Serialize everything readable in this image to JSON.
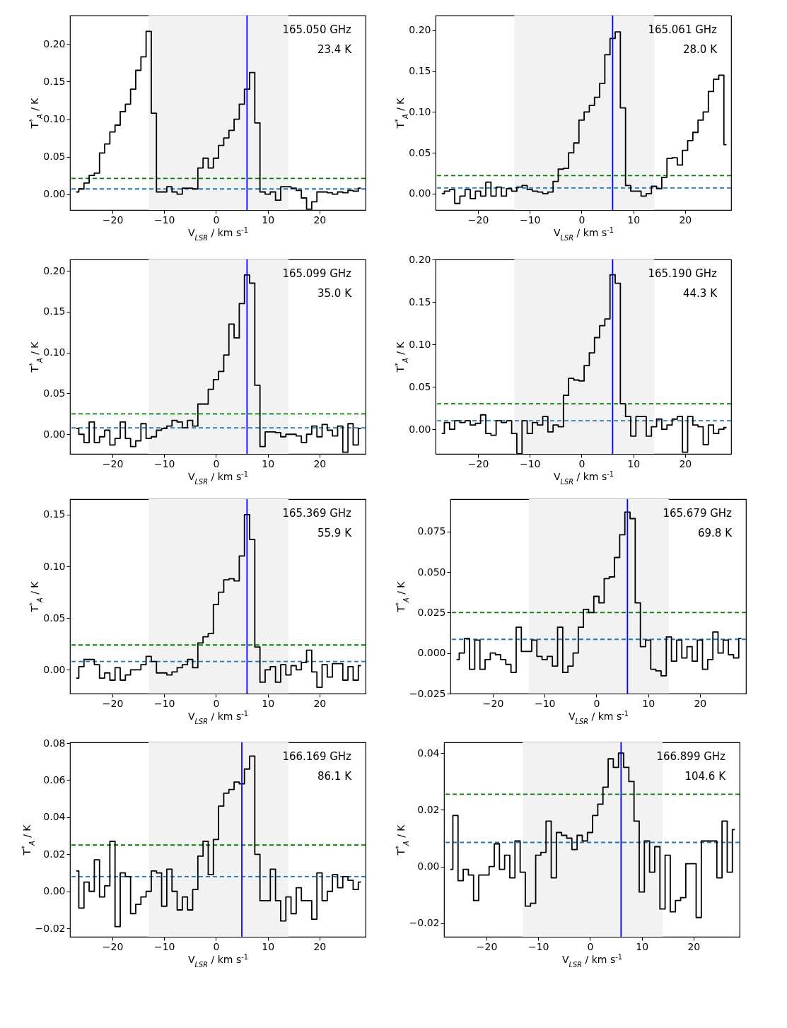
{
  "chart_data": [
    {
      "type": "step",
      "annotations": [
        "165.050 GHz",
        "23.4 K"
      ],
      "xlabel": "V$_{LSR}$ / km s$^{-1}$",
      "ylabel": "T$^{*}$$_{A}$ / K",
      "xlim": [
        -28.2,
        28.9
      ],
      "ylim": [
        -0.021,
        0.238
      ],
      "xticks": [
        -20,
        -10,
        0,
        10,
        20
      ],
      "yticks": [
        {
          "value": 0,
          "label": "0.00"
        },
        0.05,
        {
          "value": 0.1,
          "label": "0.10"
        },
        0.15,
        {
          "value": 0.2,
          "label": "0.20"
        }
      ],
      "x": [
        -27,
        -26,
        -25,
        -24,
        -23,
        -22,
        -21,
        -20,
        -19,
        -18,
        -17,
        -16,
        -15,
        -14,
        -13,
        -12,
        -11,
        -10,
        -9,
        -8,
        -7,
        -6,
        -5,
        -4,
        -3,
        -2,
        -1,
        0,
        1,
        2,
        3,
        4,
        5,
        6,
        7,
        8,
        9,
        10,
        11,
        12,
        13,
        14,
        15,
        16,
        17,
        18,
        19,
        20,
        21,
        22,
        23,
        24,
        25,
        26,
        27,
        28
      ],
      "series": [
        {
          "color": "#000000",
          "values": [
            0.003,
            0.007,
            0.015,
            0.025,
            0.028,
            0.055,
            0.067,
            0.083,
            0.092,
            0.11,
            0.12,
            0.14,
            0.165,
            0.183,
            0.217,
            0.108,
            0.003,
            0.003,
            0.01,
            0.003,
            0,
            0.008,
            0.008,
            0.007,
            0.035,
            0.048,
            0.035,
            0.048,
            0.065,
            0.075,
            0.085,
            0.1,
            0.12,
            0.14,
            0.162,
            0.095,
            0.003,
            0,
            0.003,
            -0.008,
            0.01,
            0.01,
            0.008,
            0.005,
            -0.005,
            -0.02,
            -0.01,
            0.003,
            0.003,
            0.002,
            0,
            0.003,
            0.002,
            0.005,
            0.004,
            0.008
          ]
        }
      ],
      "ref_lines": [
        {
          "axis": "y",
          "value": 0.021,
          "color": "#008000",
          "line_style": "dashed"
        },
        {
          "axis": "y",
          "value": 0.007,
          "color": "#1f77b4",
          "line_style": "dashed"
        },
        {
          "axis": "x",
          "value": 6,
          "color": "#0000ff",
          "line_style": "solid"
        }
      ],
      "bands": [
        {
          "axis": "x",
          "from": -13,
          "to": 14,
          "color": "#f2f2f2"
        }
      ]
    },
    {
      "type": "step",
      "annotations": [
        "165.061 GHz",
        "28.0 K"
      ],
      "xlabel": "V$_{LSR}$ / km s$^{-1}$",
      "ylabel": "T$^{*}$$_{A}$ / K",
      "xlim": [
        -28.2,
        28.9
      ],
      "ylim": [
        -0.02,
        0.218
      ],
      "xticks": [
        -20,
        -10,
        0,
        10,
        20
      ],
      "yticks": [
        {
          "value": 0,
          "label": "0.00"
        },
        0.05,
        {
          "value": 0.1,
          "label": "0.10"
        },
        0.15,
        {
          "value": 0.2,
          "label": "0.20"
        }
      ],
      "x": [
        -27,
        -26,
        -25,
        -24,
        -23,
        -22,
        -21,
        -20,
        -19,
        -18,
        -17,
        -16,
        -15,
        -14,
        -13,
        -12,
        -11,
        -10,
        -9,
        -8,
        -7,
        -6,
        -5,
        -4,
        -3,
        -2,
        -1,
        0,
        1,
        2,
        3,
        4,
        5,
        6,
        7,
        8,
        9,
        10,
        11,
        12,
        13,
        14,
        15,
        16,
        17,
        18,
        19,
        20,
        21,
        22,
        23,
        24,
        25,
        26,
        27,
        28
      ],
      "series": [
        {
          "color": "#000000",
          "values": [
            0,
            0.003,
            0.005,
            -0.012,
            -0.003,
            0.005,
            -0.006,
            0.003,
            -0.003,
            0.014,
            -0.003,
            0.008,
            -0.003,
            0.006,
            0.003,
            0.008,
            0.01,
            0.005,
            0.003,
            0.002,
            0,
            0.002,
            0.015,
            0.03,
            0.031,
            0.05,
            0.062,
            0.09,
            0.1,
            0.108,
            0.118,
            0.135,
            0.17,
            0.19,
            0.198,
            0.105,
            0.01,
            0.003,
            0.003,
            -0.003,
            0,
            0.009,
            0.006,
            0.02,
            0.043,
            0.044,
            0.035,
            0.053,
            0.065,
            0.075,
            0.09,
            0.1,
            0.125,
            0.14,
            0.145,
            0.06
          ]
        }
      ],
      "ref_lines": [
        {
          "axis": "y",
          "value": 0.022,
          "color": "#008000",
          "line_style": "dashed"
        },
        {
          "axis": "y",
          "value": 0.007,
          "color": "#1f77b4",
          "line_style": "dashed"
        },
        {
          "axis": "x",
          "value": 6,
          "color": "#0000ff",
          "line_style": "solid"
        }
      ],
      "bands": [
        {
          "axis": "x",
          "from": -13,
          "to": 14,
          "color": "#f2f2f2"
        }
      ]
    },
    {
      "type": "step",
      "annotations": [
        "165.099 GHz",
        "35.0 K"
      ],
      "xlabel": "V$_{LSR}$ / km s$^{-1}$",
      "ylabel": "T$^{*}$$_{A}$ / K",
      "xlim": [
        -28.2,
        28.9
      ],
      "ylim": [
        -0.024,
        0.214
      ],
      "xticks": [
        -20,
        -10,
        0,
        10,
        20
      ],
      "yticks": [
        {
          "value": 0,
          "label": "0.00"
        },
        0.05,
        {
          "value": 0.1,
          "label": "0.10"
        },
        0.15,
        {
          "value": 0.2,
          "label": "0.20"
        }
      ],
      "x": [
        -27,
        -26,
        -25,
        -24,
        -23,
        -22,
        -21,
        -20,
        -19,
        -18,
        -17,
        -16,
        -15,
        -14,
        -13,
        -12,
        -11,
        -10,
        -9,
        -8,
        -7,
        -6,
        -5,
        -4,
        -3,
        -2,
        -1,
        0,
        1,
        2,
        3,
        4,
        5,
        6,
        7,
        8,
        9,
        10,
        11,
        12,
        13,
        14,
        15,
        16,
        17,
        18,
        19,
        20,
        21,
        22,
        23,
        24,
        25,
        26,
        27,
        28
      ],
      "series": [
        {
          "color": "#000000",
          "values": [
            0.007,
            0,
            -0.01,
            0.015,
            -0.01,
            -0.003,
            0.005,
            -0.013,
            -0.005,
            0.015,
            -0.005,
            -0.015,
            -0.008,
            0.013,
            -0.005,
            -0.003,
            0.005,
            0.007,
            0.01,
            0.017,
            0.015,
            0.008,
            0.017,
            0.01,
            0.037,
            0.037,
            0.055,
            0.067,
            0.077,
            0.097,
            0.135,
            0.118,
            0.16,
            0.195,
            0.185,
            0.06,
            -0.015,
            0.003,
            0.003,
            0.002,
            -0.003,
            0,
            0,
            -0.002,
            -0.01,
            0,
            0.01,
            -0.003,
            0.012,
            0.005,
            -0.002,
            0.01,
            -0.022,
            0.013,
            -0.013,
            0.007
          ]
        }
      ],
      "ref_lines": [
        {
          "axis": "y",
          "value": 0.025,
          "color": "#008000",
          "line_style": "dashed"
        },
        {
          "axis": "y",
          "value": 0.008,
          "color": "#1f77b4",
          "line_style": "dashed"
        },
        {
          "axis": "x",
          "value": 6,
          "color": "#0000ff",
          "line_style": "solid"
        }
      ],
      "bands": [
        {
          "axis": "x",
          "from": -13,
          "to": 14,
          "color": "#f2f2f2"
        }
      ]
    },
    {
      "type": "step",
      "annotations": [
        "165.190 GHz",
        "44.3 K"
      ],
      "xlabel": "V$_{LSR}$ / km s$^{-1}$",
      "ylabel": "T$^{*}$$_{A}$ / K",
      "xlim": [
        -28.2,
        28.9
      ],
      "ylim": [
        -0.029,
        0.2
      ],
      "xticks": [
        -20,
        -10,
        0,
        10,
        20
      ],
      "yticks": [
        {
          "value": 0,
          "label": "0.00"
        },
        0.05,
        {
          "value": 0.1,
          "label": "0.10"
        },
        0.15,
        {
          "value": 0.2,
          "label": "0.20"
        }
      ],
      "x": [
        -27,
        -26,
        -25,
        -24,
        -23,
        -22,
        -21,
        -20,
        -19,
        -18,
        -17,
        -16,
        -15,
        -14,
        -13,
        -12,
        -11,
        -10,
        -9,
        -8,
        -7,
        -6,
        -5,
        -4,
        -3,
        -2,
        -1,
        0,
        1,
        2,
        3,
        4,
        5,
        6,
        7,
        8,
        9,
        10,
        11,
        12,
        13,
        14,
        15,
        16,
        17,
        18,
        19,
        20,
        21,
        22,
        23,
        24,
        25,
        26,
        27,
        28
      ],
      "series": [
        {
          "color": "#000000",
          "values": [
            -0.005,
            0.008,
            0,
            0.01,
            0.008,
            0.01,
            0.005,
            0.007,
            0.017,
            -0.005,
            -0.007,
            0.01,
            0.008,
            0.01,
            -0.005,
            -0.029,
            0.01,
            -0.005,
            0.008,
            0.005,
            0.015,
            -0.003,
            0.005,
            0.003,
            0.04,
            0.06,
            0.058,
            0.057,
            0.075,
            0.09,
            0.108,
            0.122,
            0.13,
            0.182,
            0.172,
            0.03,
            0.015,
            -0.008,
            0.015,
            0.015,
            -0.008,
            0.003,
            0.012,
            0,
            0.005,
            0.012,
            0.015,
            -0.027,
            0.015,
            0.005,
            0.003,
            -0.018,
            0.005,
            -0.005,
            0,
            0.002
          ]
        }
      ],
      "ref_lines": [
        {
          "axis": "y",
          "value": 0.03,
          "color": "#008000",
          "line_style": "dashed"
        },
        {
          "axis": "y",
          "value": 0.01,
          "color": "#1f77b4",
          "line_style": "dashed"
        },
        {
          "axis": "x",
          "value": 6,
          "color": "#0000ff",
          "line_style": "solid"
        }
      ],
      "bands": [
        {
          "axis": "x",
          "from": -13,
          "to": 14,
          "color": "#f2f2f2"
        }
      ]
    },
    {
      "type": "step",
      "annotations": [
        "165.369 GHz",
        "55.9 K"
      ],
      "xlabel": "V$_{LSR}$ / km s$^{-1}$",
      "ylabel": "T$^{*}$$_{A}$ / K",
      "xlim": [
        -28.2,
        28.9
      ],
      "ylim": [
        -0.023,
        0.165
      ],
      "xticks": [
        -20,
        -10,
        0,
        10,
        20
      ],
      "yticks": [
        {
          "value": 0,
          "label": "0.00"
        },
        0.05,
        {
          "value": 0.1,
          "label": "0.10"
        },
        0.15
      ],
      "x": [
        -27,
        -26,
        -25,
        -24,
        -23,
        -22,
        -21,
        -20,
        -19,
        -18,
        -17,
        -16,
        -15,
        -14,
        -13,
        -12,
        -11,
        -10,
        -9,
        -8,
        -7,
        -6,
        -5,
        -4,
        -3,
        -2,
        -1,
        0,
        1,
        2,
        3,
        4,
        5,
        6,
        7,
        8,
        9,
        10,
        11,
        12,
        13,
        14,
        15,
        16,
        17,
        18,
        19,
        20,
        21,
        22,
        23,
        24,
        25,
        26,
        27,
        28
      ],
      "series": [
        {
          "color": "#000000",
          "values": [
            -0.008,
            0.003,
            0.01,
            0.01,
            0.005,
            -0.008,
            -0.003,
            -0.01,
            0.002,
            -0.01,
            -0.005,
            0,
            0,
            0.005,
            0.013,
            0.008,
            -0.003,
            -0.003,
            -0.005,
            -0.002,
            0.002,
            0.005,
            0.01,
            0.002,
            0.026,
            0.032,
            0.035,
            0.063,
            0.075,
            0.087,
            0.088,
            0.086,
            0.11,
            0.15,
            0.126,
            0.022,
            -0.012,
            0,
            0.003,
            -0.012,
            0.005,
            -0.005,
            0.004,
            0,
            0.007,
            0.019,
            -0.002,
            -0.017,
            0.005,
            -0.007,
            0.006,
            0.006,
            -0.01,
            0.003,
            -0.01,
            0.004
          ]
        }
      ],
      "ref_lines": [
        {
          "axis": "y",
          "value": 0.024,
          "color": "#008000",
          "line_style": "dashed"
        },
        {
          "axis": "y",
          "value": 0.008,
          "color": "#1f77b4",
          "line_style": "dashed"
        },
        {
          "axis": "x",
          "value": 6,
          "color": "#0000ff",
          "line_style": "solid"
        }
      ],
      "bands": [
        {
          "axis": "x",
          "from": -13,
          "to": 14,
          "color": "#f2f2f2"
        }
      ]
    },
    {
      "type": "step",
      "annotations": [
        "165.679 GHz",
        "69.8 K"
      ],
      "xlabel": "V$_{LSR}$ / km s$^{-1}$",
      "ylabel": "T$^{*}$$_{A}$ / K",
      "xlim": [
        -28.2,
        28.9
      ],
      "ylim": [
        -0.025,
        0.095
      ],
      "xticks": [
        -20,
        -10,
        0,
        10,
        20
      ],
      "yticks": [
        {
          "value": -0.025,
          "label": "−0.025"
        },
        {
          "value": 0,
          "label": "0.000"
        },
        {
          "value": 0.025,
          "label": "0.025"
        },
        {
          "value": 0.05,
          "label": "0.050"
        },
        {
          "value": 0.075,
          "label": "0.075"
        }
      ],
      "x": [
        -27,
        -26,
        -25,
        -24,
        -23,
        -22,
        -21,
        -20,
        -19,
        -18,
        -17,
        -16,
        -15,
        -14,
        -13,
        -12,
        -11,
        -10,
        -9,
        -8,
        -7,
        -6,
        -5,
        -4,
        -3,
        -2,
        -1,
        0,
        1,
        2,
        3,
        4,
        5,
        6,
        7,
        8,
        9,
        10,
        11,
        12,
        13,
        14,
        15,
        16,
        17,
        18,
        19,
        20,
        21,
        22,
        23,
        24,
        25,
        26,
        27,
        28
      ],
      "series": [
        {
          "color": "#000000",
          "values": [
            -0.004,
            0,
            0.009,
            -0.01,
            0.008,
            -0.01,
            -0.004,
            0,
            -0.001,
            -0.004,
            -0.007,
            -0.012,
            0.016,
            0.001,
            0.001,
            0.008,
            -0.002,
            -0.004,
            -0.002,
            -0.008,
            0.016,
            -0.012,
            -0.008,
            0,
            0.016,
            0.027,
            0.025,
            0.035,
            0.031,
            0.046,
            0.047,
            0.059,
            0.073,
            0.087,
            0.083,
            0.031,
            0.004,
            0.008,
            -0.01,
            -0.011,
            -0.014,
            0.01,
            -0.005,
            0.008,
            -0.003,
            0.004,
            -0.005,
            0.008,
            -0.01,
            -0.004,
            0.013,
            0,
            0.008,
            -0.001,
            -0.003,
            0.009
          ]
        }
      ],
      "ref_lines": [
        {
          "axis": "y",
          "value": 0.025,
          "color": "#008000",
          "line_style": "dashed"
        },
        {
          "axis": "y",
          "value": 0.0085,
          "color": "#1f77b4",
          "line_style": "dashed"
        },
        {
          "axis": "x",
          "value": 6,
          "color": "#0000ff",
          "line_style": "solid"
        }
      ],
      "bands": [
        {
          "axis": "x",
          "from": -13,
          "to": 14,
          "color": "#f2f2f2"
        }
      ]
    },
    {
      "type": "step",
      "annotations": [
        "166.169 GHz",
        "86.1 K"
      ],
      "xlabel": "V$_{LSR}$ / km s$^{-1}$",
      "ylabel": "T$^{*}$$_{A}$ / K",
      "xlim": [
        -28.2,
        28.9
      ],
      "ylim": [
        -0.0245,
        0.0804
      ],
      "xticks": [
        -20,
        -10,
        0,
        10,
        20
      ],
      "yticks": [
        {
          "value": -0.02,
          "label": "−0.02"
        },
        {
          "value": 0,
          "label": "0.00"
        },
        0.02,
        0.04,
        0.06,
        0.08
      ],
      "x": [
        -27,
        -26,
        -25,
        -24,
        -23,
        -22,
        -21,
        -20,
        -19,
        -18,
        -17,
        -16,
        -15,
        -14,
        -13,
        -12,
        -11,
        -10,
        -9,
        -8,
        -7,
        -6,
        -5,
        -4,
        -3,
        -2,
        -1,
        0,
        1,
        2,
        3,
        4,
        5,
        6,
        7,
        8,
        9,
        10,
        11,
        12,
        13,
        14,
        15,
        16,
        17,
        18,
        19,
        20,
        21,
        22,
        23,
        24,
        25,
        26,
        27,
        28
      ],
      "series": [
        {
          "color": "#000000",
          "values": [
            0.011,
            -0.009,
            0.005,
            0,
            0.017,
            -0.003,
            0.003,
            0.027,
            -0.019,
            0.01,
            0.008,
            -0.012,
            -0.007,
            -0.003,
            0,
            0.011,
            0.01,
            -0.008,
            0.012,
            0,
            -0.01,
            -0.003,
            -0.01,
            0.001,
            0.019,
            0.027,
            0.009,
            0.028,
            0.046,
            0.053,
            0.055,
            0.059,
            0.058,
            0.066,
            0.073,
            0.02,
            -0.005,
            -0.005,
            0.012,
            -0.005,
            -0.016,
            -0.003,
            -0.012,
            0.002,
            -0.005,
            -0.005,
            -0.015,
            0.01,
            -0.005,
            0,
            0.009,
            0.002,
            0.008,
            0.006,
            0.001,
            0.005
          ]
        }
      ],
      "ref_lines": [
        {
          "axis": "y",
          "value": 0.025,
          "color": "#008000",
          "line_style": "dashed"
        },
        {
          "axis": "y",
          "value": 0.008,
          "color": "#1f77b4",
          "line_style": "dashed"
        },
        {
          "axis": "x",
          "value": 5,
          "color": "#0000ff",
          "line_style": "solid"
        }
      ],
      "bands": [
        {
          "axis": "x",
          "from": -13,
          "to": 14,
          "color": "#f2f2f2"
        }
      ]
    },
    {
      "type": "step",
      "annotations": [
        "166.899 GHz",
        "104.6 K"
      ],
      "xlabel": "V$_{LSR}$ / km s$^{-1}$",
      "ylabel": "T$^{*}$$_{A}$ / K",
      "xlim": [
        -28.2,
        28.9
      ],
      "ylim": [
        -0.0248,
        0.0438
      ],
      "xticks": [
        -20,
        -10,
        0,
        10,
        20
      ],
      "yticks": [
        {
          "value": -0.02,
          "label": "−0.02"
        },
        {
          "value": 0,
          "label": "0.00"
        },
        0.02,
        0.04
      ],
      "x": [
        -27,
        -26,
        -25,
        -24,
        -23,
        -22,
        -21,
        -20,
        -19,
        -18,
        -17,
        -16,
        -15,
        -14,
        -13,
        -12,
        -11,
        -10,
        -9,
        -8,
        -7,
        -6,
        -5,
        -4,
        -3,
        -2,
        -1,
        0,
        1,
        2,
        3,
        4,
        5,
        6,
        7,
        8,
        9,
        10,
        11,
        12,
        13,
        14,
        15,
        16,
        17,
        18,
        19,
        20,
        21,
        22,
        23,
        24,
        25,
        26,
        27,
        28
      ],
      "series": [
        {
          "color": "#000000",
          "values": [
            -0.001,
            0.018,
            -0.005,
            -0.001,
            -0.003,
            -0.012,
            -0.003,
            -0.003,
            0,
            0.008,
            -0.001,
            0.004,
            -0.004,
            0.009,
            -0.002,
            -0.014,
            -0.013,
            0.004,
            0.005,
            0.016,
            -0.004,
            0.012,
            0.011,
            0.01,
            0.006,
            0.011,
            0.009,
            0.012,
            0.018,
            0.022,
            0.028,
            0.038,
            0.035,
            0.04,
            0.035,
            0.03,
            0.016,
            -0.009,
            0.009,
            -0.002,
            0.007,
            -0.015,
            0.004,
            -0.016,
            -0.012,
            -0.011,
            0.001,
            0.001,
            -0.018,
            0.009,
            0.009,
            0.009,
            -0.004,
            0.016,
            -0.002,
            0.013
          ]
        }
      ],
      "ref_lines": [
        {
          "axis": "y",
          "value": 0.0255,
          "color": "#008000",
          "line_style": "dashed"
        },
        {
          "axis": "y",
          "value": 0.0085,
          "color": "#1f77b4",
          "line_style": "dashed"
        },
        {
          "axis": "x",
          "value": 6,
          "color": "#0000ff",
          "line_style": "solid"
        }
      ],
      "bands": [
        {
          "axis": "x",
          "from": -13,
          "to": 14,
          "color": "#f2f2f2"
        }
      ]
    }
  ]
}
